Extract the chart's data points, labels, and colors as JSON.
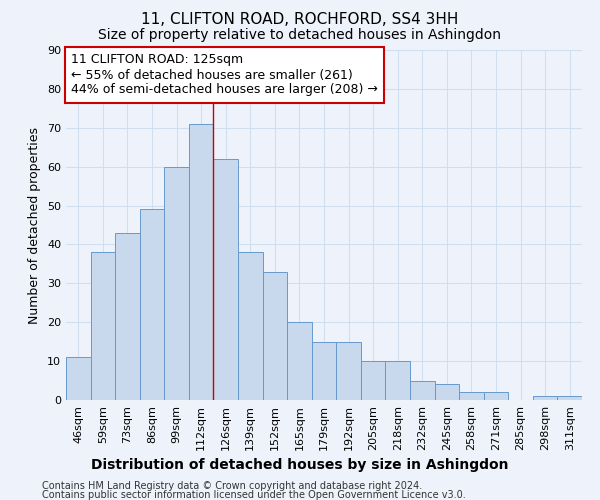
{
  "title": "11, CLIFTON ROAD, ROCHFORD, SS4 3HH",
  "subtitle": "Size of property relative to detached houses in Ashingdon",
  "xlabel": "Distribution of detached houses by size in Ashingdon",
  "ylabel": "Number of detached properties",
  "categories": [
    "46sqm",
    "59sqm",
    "73sqm",
    "86sqm",
    "99sqm",
    "112sqm",
    "126sqm",
    "139sqm",
    "152sqm",
    "165sqm",
    "179sqm",
    "192sqm",
    "205sqm",
    "218sqm",
    "232sqm",
    "245sqm",
    "258sqm",
    "271sqm",
    "285sqm",
    "298sqm",
    "311sqm"
  ],
  "values": [
    11,
    38,
    43,
    49,
    60,
    71,
    62,
    38,
    33,
    20,
    15,
    15,
    10,
    10,
    5,
    4,
    2,
    2,
    0,
    1,
    1
  ],
  "bar_color": "#c9d9ed",
  "bar_edge_color": "#6699cc",
  "grid_color": "#d0dff0",
  "background_color": "#eef3fb",
  "vline_x": 6.0,
  "vline_color": "#cc0000",
  "annotation_line1": "11 CLIFTON ROAD: 125sqm",
  "annotation_line2": "← 55% of detached houses are smaller (261)",
  "annotation_line3": "44% of semi-detached houses are larger (208) →",
  "annotation_box_color": "#ffffff",
  "annotation_box_edge": "#cc0000",
  "footer_line1": "Contains HM Land Registry data © Crown copyright and database right 2024.",
  "footer_line2": "Contains public sector information licensed under the Open Government Licence v3.0.",
  "ylim": [
    0,
    90
  ],
  "title_fontsize": 11,
  "subtitle_fontsize": 10,
  "xlabel_fontsize": 10,
  "ylabel_fontsize": 9,
  "tick_fontsize": 8,
  "annotation_fontsize": 9,
  "footer_fontsize": 7
}
